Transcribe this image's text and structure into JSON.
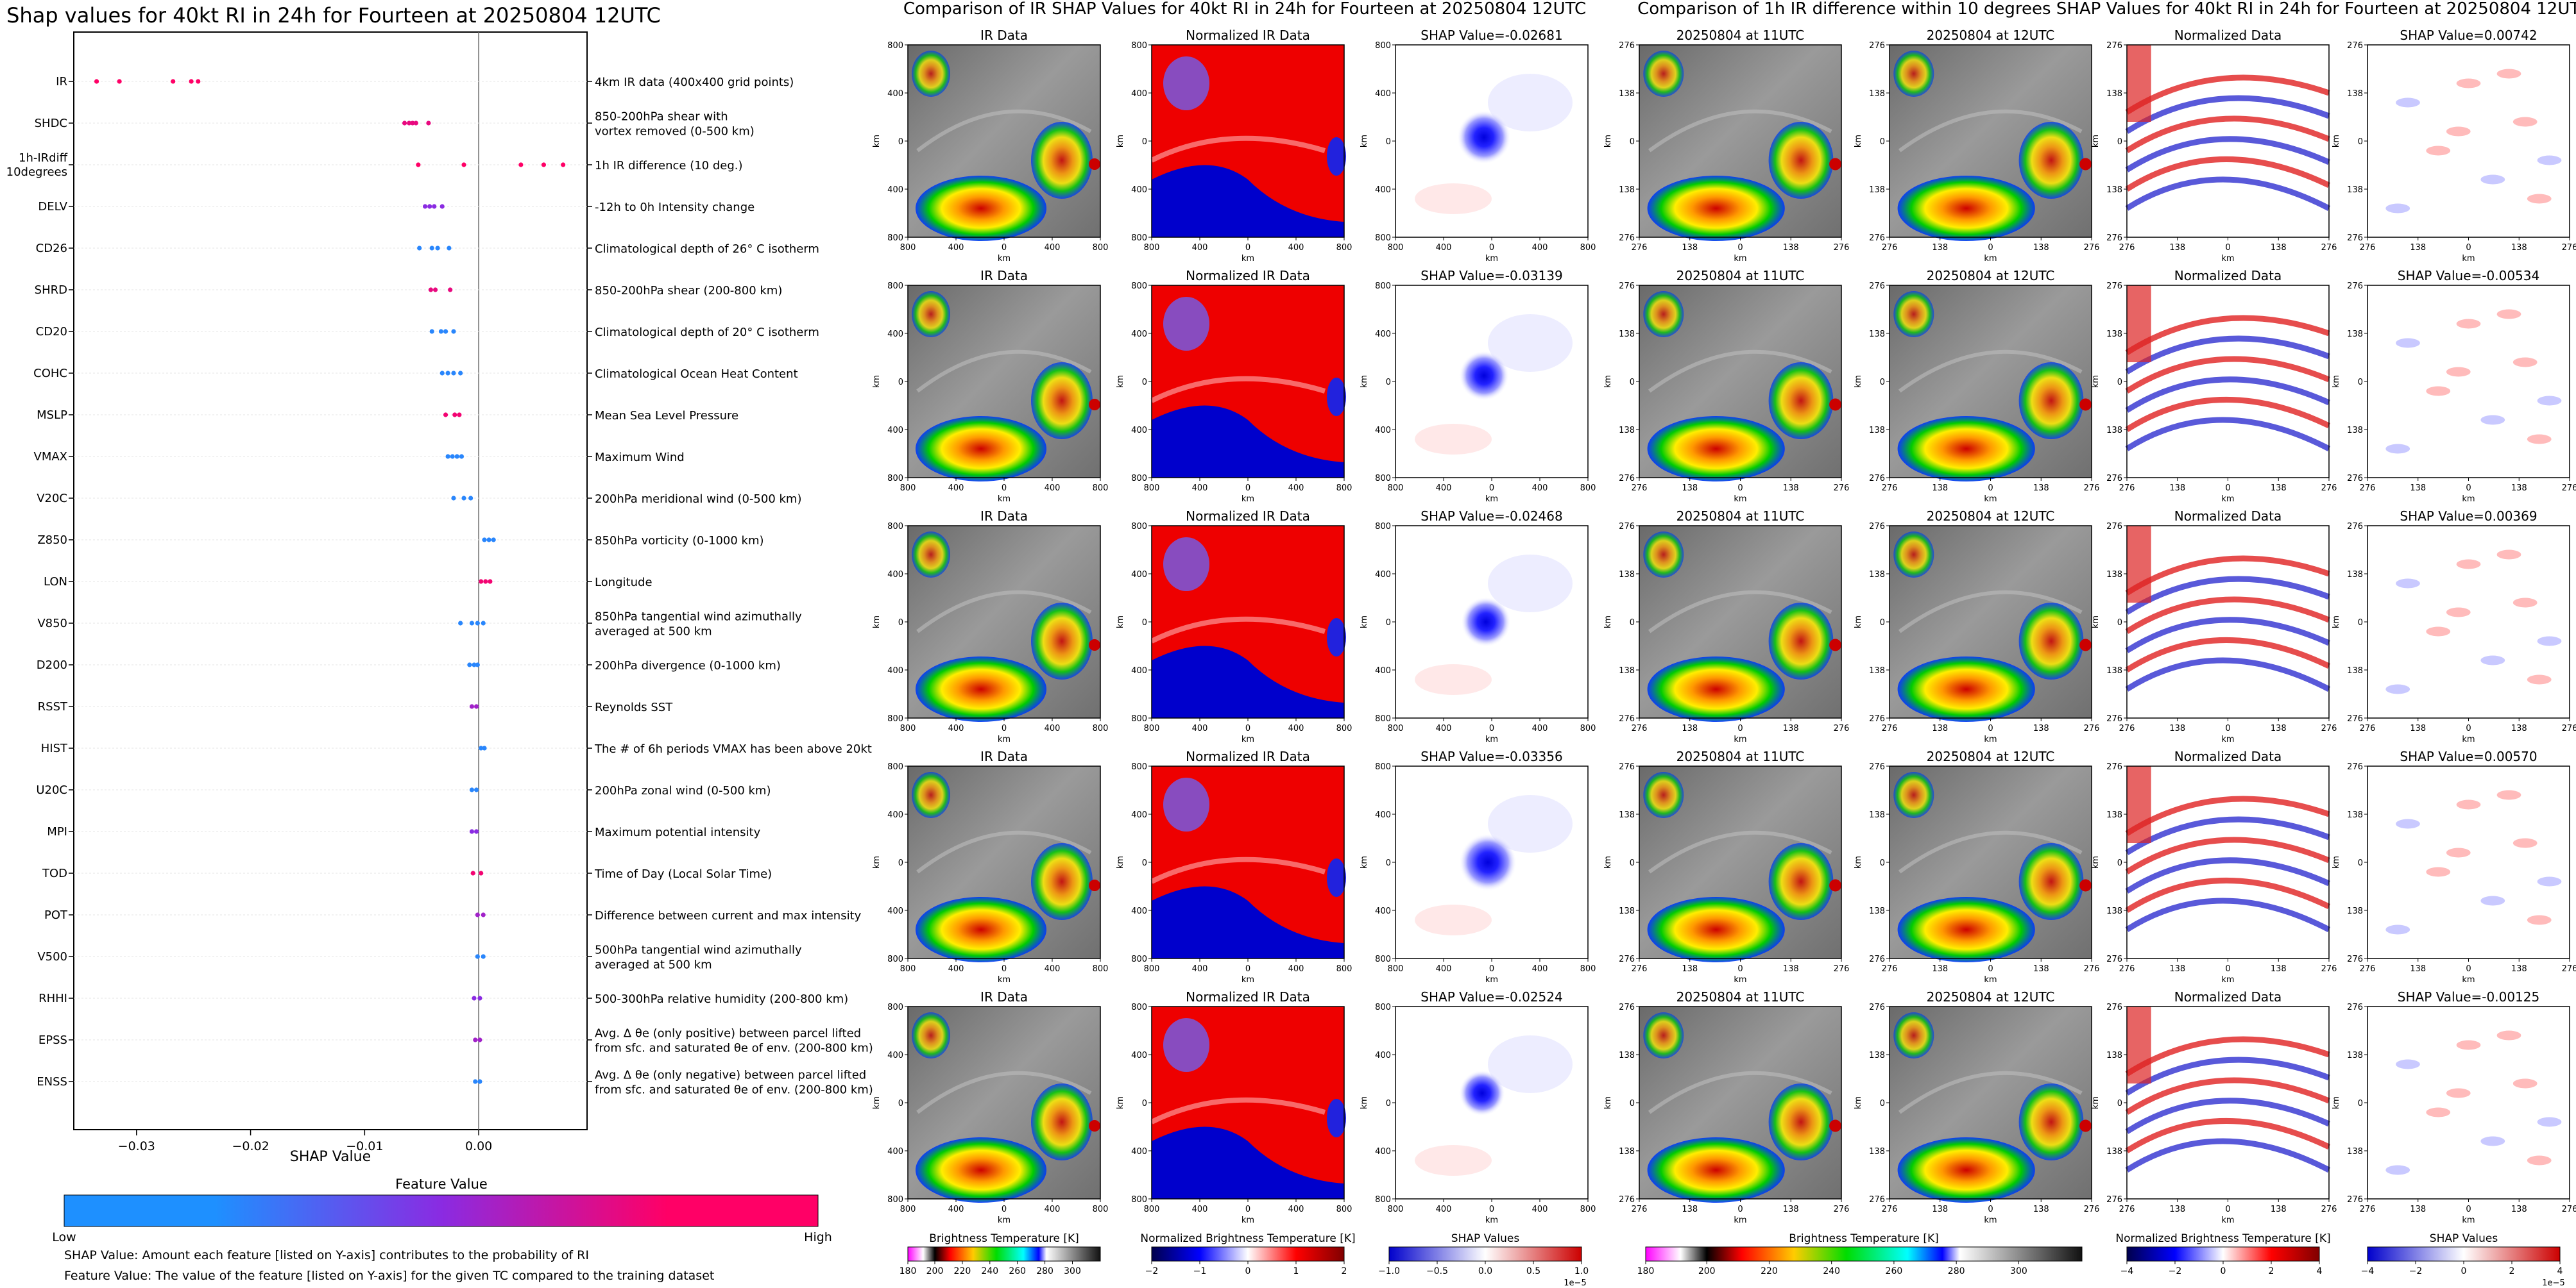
{
  "left_panel": {
    "title": "Shap values for 40kt RI in 24h for Fourteen at 20250804 12UTC",
    "xlabel": "SHAP Value",
    "xticks": [
      "−0.03",
      "−0.02",
      "−0.01",
      "0.00"
    ],
    "colorbar_title": "Feature Value",
    "colorbar_low": "Low",
    "colorbar_high": "High",
    "footnote1": "SHAP Value: Amount each feature [listed on Y-axis] contributes to the probability of RI",
    "footnote2": "Feature Value: The value of the feature [listed on Y-axis] for the given TC compared to the training dataset"
  },
  "middle_title": "Comparison of IR SHAP Values for 40kt RI in 24h for Fourteen at 20250804 12UTC",
  "right_title": "Comparison of 1h IR difference within 10 degrees SHAP Values for 40kt RI in 24h for Fourteen at 20250804 12UTC",
  "ir_panel_titles": [
    "IR Data",
    "Normalized IR Data"
  ],
  "ir_shap_values": [
    "SHAP Value=-0.02681",
    "SHAP Value=-0.03139",
    "SHAP Value=-0.02468",
    "SHAP Value=-0.03356",
    "SHAP Value=-0.02524"
  ],
  "diff_panel_titles": [
    "20250804 at 11UTC",
    "20250804 at 12UTC",
    "Normalized Data"
  ],
  "diff_shap_values": [
    "SHAP Value=0.00742",
    "SHAP Value=-0.00534",
    "SHAP Value=0.00369",
    "SHAP Value=0.00570",
    "SHAP Value=-0.00125"
  ],
  "axis_unit": "km",
  "ir_ticks": [
    "800",
    "400",
    "0",
    "400",
    "800"
  ],
  "diff_ticks": [
    "276",
    "138",
    "0",
    "138",
    "276"
  ],
  "colorbars": [
    {
      "label": "Brightness Temperature [K]",
      "ticks": [
        "180",
        "200",
        "220",
        "240",
        "260",
        "280",
        "300"
      ]
    },
    {
      "label": "Normalized Brightness Temperature [K]",
      "ticks": [
        "−2",
        "−1",
        "0",
        "1",
        "2"
      ]
    },
    {
      "label": "SHAP Values",
      "ticks": [
        "−1.0",
        "−0.5",
        "0.0",
        "0.5",
        "1.0"
      ],
      "offset": "1e−5"
    },
    {
      "label": "Brightness Temperature [K]",
      "ticks": [
        "180",
        "200",
        "220",
        "240",
        "260",
        "280",
        "300"
      ]
    },
    {
      "label": "Normalized Brightness Temperature [K]",
      "ticks": [
        "−4",
        "−2",
        "0",
        "2",
        "4"
      ]
    },
    {
      "label": "SHAP Values",
      "ticks": [
        "−4",
        "−2",
        "0",
        "2",
        "4"
      ],
      "offset": "1e−5"
    }
  ],
  "colors": {
    "low": "#1e90ff",
    "mid": "#8a2be2",
    "high": "#ff0066"
  },
  "chart_data": {
    "type": "scatter",
    "title": "Shap values for 40kt RI in 24h for Fourteen at 20250804 12UTC",
    "xlabel": "SHAP Value",
    "xlim": [
      -0.0355,
      0.0095
    ],
    "features": [
      {
        "name": "IR",
        "desc": [
          "4km IR data (400x400 grid points)"
        ],
        "points": [
          [
            -0.0335,
            1
          ],
          [
            -0.0315,
            1
          ],
          [
            -0.0268,
            1
          ],
          [
            -0.0252,
            1
          ],
          [
            -0.0246,
            1
          ]
        ]
      },
      {
        "name": "SHDC",
        "desc": [
          "850-200hPa shear with",
          "vortex removed (0-500 km)"
        ],
        "points": [
          [
            -0.0065,
            0.9
          ],
          [
            -0.0061,
            0.9
          ],
          [
            -0.0058,
            0.9
          ],
          [
            -0.0055,
            0.9
          ],
          [
            -0.0044,
            0.9
          ]
        ]
      },
      {
        "name": [
          "1h-IRdiff",
          "10degrees"
        ],
        "desc": [
          "1h IR difference (10 deg.)"
        ],
        "points": [
          [
            -0.0053,
            1
          ],
          [
            -0.0013,
            1
          ],
          [
            0.0037,
            1
          ],
          [
            0.0057,
            1
          ],
          [
            0.0074,
            1
          ]
        ]
      },
      {
        "name": "DELV",
        "desc": [
          "-12h to 0h Intensity change"
        ],
        "points": [
          [
            -0.0047,
            0.5
          ],
          [
            -0.0043,
            0.5
          ],
          [
            -0.0039,
            0.5
          ],
          [
            -0.0032,
            0.5
          ]
        ]
      },
      {
        "name": "CD26",
        "desc": [
          "Climatological depth of 26° C isotherm"
        ],
        "points": [
          [
            -0.0052,
            0.05
          ],
          [
            -0.0041,
            0.05
          ],
          [
            -0.0036,
            0.05
          ],
          [
            -0.0026,
            0.05
          ]
        ]
      },
      {
        "name": "SHRD",
        "desc": [
          "850-200hPa shear (200-800 km)"
        ],
        "points": [
          [
            -0.0042,
            0.9
          ],
          [
            -0.0038,
            0.9
          ],
          [
            -0.0025,
            0.9
          ]
        ]
      },
      {
        "name": "CD20",
        "desc": [
          "Climatological depth of 20° C isotherm"
        ],
        "points": [
          [
            -0.0041,
            0.05
          ],
          [
            -0.0033,
            0.05
          ],
          [
            -0.0029,
            0.05
          ],
          [
            -0.0022,
            0.05
          ]
        ]
      },
      {
        "name": "COHC",
        "desc": [
          "Climatological Ocean Heat Content"
        ],
        "points": [
          [
            -0.0032,
            0.05
          ],
          [
            -0.0027,
            0.05
          ],
          [
            -0.0022,
            0.05
          ],
          [
            -0.0016,
            0.05
          ]
        ]
      },
      {
        "name": "MSLP",
        "desc": [
          "Mean Sea Level Pressure"
        ],
        "points": [
          [
            -0.0029,
            0.95
          ],
          [
            -0.0021,
            0.95
          ],
          [
            -0.0017,
            0.95
          ]
        ]
      },
      {
        "name": "VMAX",
        "desc": [
          "Maximum Wind"
        ],
        "points": [
          [
            -0.0027,
            0.05
          ],
          [
            -0.0023,
            0.05
          ],
          [
            -0.0019,
            0.05
          ],
          [
            -0.0015,
            0.05
          ]
        ]
      },
      {
        "name": "V20C",
        "desc": [
          "200hPa meridional wind (0-500 km)"
        ],
        "points": [
          [
            -0.0022,
            0.05
          ],
          [
            -0.0013,
            0.05
          ],
          [
            -0.0007,
            0.05
          ]
        ]
      },
      {
        "name": "Z850",
        "desc": [
          "850hPa vorticity (0-1000 km)"
        ],
        "points": [
          [
            0.0005,
            0.05
          ],
          [
            0.0009,
            0.05
          ],
          [
            0.0013,
            0.05
          ]
        ]
      },
      {
        "name": "LON",
        "desc": [
          "Longitude"
        ],
        "points": [
          [
            0.0002,
            0.95
          ],
          [
            0.0006,
            0.95
          ],
          [
            0.001,
            0.95
          ]
        ]
      },
      {
        "name": "V850",
        "desc": [
          "850hPa tangential wind azimuthally",
          "averaged at 500 km"
        ],
        "points": [
          [
            -0.0016,
            0.05
          ],
          [
            -0.0006,
            0.05
          ],
          [
            -0.0001,
            0.05
          ],
          [
            0.0004,
            0.05
          ]
        ]
      },
      {
        "name": "D200",
        "desc": [
          "200hPa divergence (0-1000 km)"
        ],
        "points": [
          [
            -0.0008,
            0.05
          ],
          [
            -0.0004,
            0.05
          ],
          [
            -0.0001,
            0.05
          ]
        ]
      },
      {
        "name": "RSST",
        "desc": [
          "Reynolds SST"
        ],
        "points": [
          [
            -0.0006,
            0.6
          ],
          [
            -0.0002,
            0.6
          ]
        ]
      },
      {
        "name": "HIST",
        "desc": [
          "The # of 6h periods VMAX has been above 20kt"
        ],
        "points": [
          [
            0.0002,
            0.05
          ],
          [
            0.0005,
            0.05
          ]
        ]
      },
      {
        "name": "U20C",
        "desc": [
          "200hPa zonal wind (0-500 km)"
        ],
        "points": [
          [
            -0.0006,
            0.05
          ],
          [
            -0.0002,
            0.05
          ]
        ]
      },
      {
        "name": "MPI",
        "desc": [
          "Maximum potential intensity"
        ],
        "points": [
          [
            -0.0006,
            0.5
          ],
          [
            -0.0002,
            0.5
          ]
        ]
      },
      {
        "name": "TOD",
        "desc": [
          "Time of Day (Local Solar Time)"
        ],
        "points": [
          [
            -0.0005,
            0.95
          ],
          [
            0.0002,
            0.95
          ]
        ]
      },
      {
        "name": "POT",
        "desc": [
          "Difference between current and max intensity"
        ],
        "points": [
          [
            -0.0001,
            0.6
          ],
          [
            0.0004,
            0.6
          ]
        ]
      },
      {
        "name": "V500",
        "desc": [
          "500hPa tangential wind azimuthally",
          "averaged at 500 km"
        ],
        "points": [
          [
            -0.0001,
            0.05
          ],
          [
            0.0004,
            0.05
          ]
        ]
      },
      {
        "name": "RHHI",
        "desc": [
          "500-300hPa relative humidity (200-800 km)"
        ],
        "points": [
          [
            -0.0004,
            0.5
          ],
          [
            0.0001,
            0.5
          ]
        ]
      },
      {
        "name": "EPSS",
        "desc": [
          "Avg. Δ θe (only positive) between parcel lifted",
          "from sfc. and saturated θe of env. (200-800 km)"
        ],
        "points": [
          [
            -0.0003,
            0.6
          ],
          [
            0.0001,
            0.6
          ]
        ]
      },
      {
        "name": "ENSS",
        "desc": [
          "Avg. Δ θe (only negative) between parcel lifted",
          "from sfc. and saturated θe of env. (200-800 km)"
        ],
        "points": [
          [
            -0.0003,
            0.05
          ],
          [
            0.0001,
            0.05
          ]
        ]
      }
    ]
  }
}
